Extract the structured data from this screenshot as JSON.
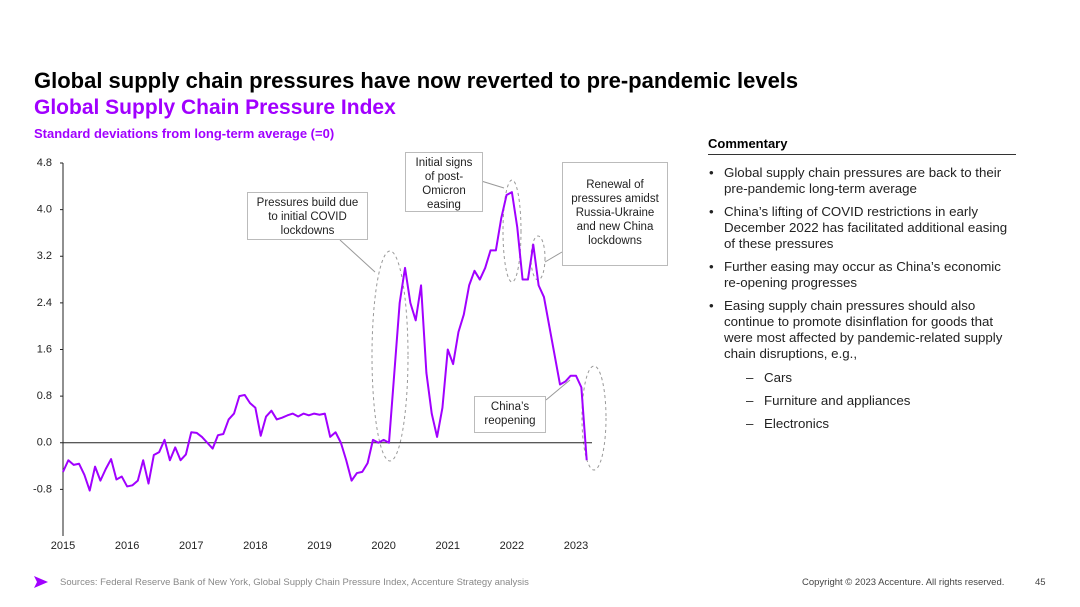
{
  "header": {
    "title": "Global supply chain pressures have now reverted to pre-pandemic levels"
  },
  "chart_data": {
    "type": "line",
    "title": "Global Supply Chain Pressure Index",
    "y_label": "Standard deviations from long-term average (=0)",
    "categories": [
      "2015",
      null,
      null,
      null,
      null,
      null,
      null,
      null,
      null,
      null,
      null,
      null,
      "2016",
      null,
      null,
      null,
      null,
      null,
      null,
      null,
      null,
      null,
      null,
      null,
      "2017",
      null,
      null,
      null,
      null,
      null,
      null,
      null,
      null,
      null,
      null,
      null,
      "2018",
      null,
      null,
      null,
      null,
      null,
      null,
      null,
      null,
      null,
      null,
      null,
      "2019",
      null,
      null,
      null,
      null,
      null,
      null,
      null,
      null,
      null,
      null,
      null,
      "2020",
      null,
      null,
      null,
      null,
      null,
      null,
      null,
      null,
      null,
      null,
      null,
      "2021",
      null,
      null,
      null,
      null,
      null,
      null,
      null,
      null,
      null,
      null,
      null,
      "2022",
      null,
      null,
      null,
      null,
      null,
      null,
      null,
      null,
      null,
      null,
      null,
      "2023",
      null,
      null
    ],
    "values": [
      -0.5,
      -0.3,
      -0.38,
      -0.36,
      -0.55,
      -0.82,
      -0.41,
      -0.65,
      -0.45,
      -0.28,
      -0.63,
      -0.58,
      -0.75,
      -0.73,
      -0.65,
      -0.3,
      -0.7,
      -0.21,
      -0.16,
      0.05,
      -0.3,
      -0.08,
      -0.3,
      -0.2,
      0.18,
      0.17,
      0.1,
      0.0,
      -0.1,
      0.13,
      0.15,
      0.4,
      0.5,
      0.8,
      0.82,
      0.68,
      0.6,
      0.12,
      0.45,
      0.55,
      0.4,
      0.43,
      0.47,
      0.5,
      0.45,
      0.5,
      0.47,
      0.5,
      0.48,
      0.5,
      0.1,
      0.18,
      0.0,
      -0.3,
      -0.65,
      -0.52,
      -0.5,
      -0.35,
      0.05,
      0.0,
      0.05,
      0.0,
      1.2,
      2.4,
      3.0,
      2.4,
      2.1,
      2.7,
      1.2,
      0.5,
      0.1,
      0.6,
      1.6,
      1.35,
      1.9,
      2.2,
      2.7,
      2.95,
      2.8,
      3.0,
      3.3,
      3.3,
      3.85,
      4.25,
      4.3,
      3.7,
      2.8,
      2.8,
      3.4,
      2.7,
      2.5,
      2.0,
      1.5,
      1.0,
      1.05,
      1.15,
      1.15,
      0.95,
      -0.3
    ],
    "color": "#a100ff",
    "ylim": [
      -1.6,
      4.8
    ],
    "yticks": [
      -0.8,
      {
        "value": 0,
        "label": "0.0"
      },
      0.8,
      1.6,
      2.4,
      3.2,
      {
        "value": 4,
        "label": "4.0"
      },
      4.8
    ],
    "grid": false,
    "annotations": [
      "Pressures build due to initial COVID lockdowns",
      "Initial signs of post-Omicron easing",
      "Renewal of pressures amidst Russia-Ukraine and new China lockdowns",
      "China’s reopening"
    ]
  },
  "commentary": {
    "heading": "Commentary",
    "bullets": [
      "Global supply chain pressures are back to their pre-pandemic long-term average",
      "China’s lifting of COVID restrictions in early December 2022 has facilitated additional easing of these pressures",
      "Further easing may occur as China’s economic re-opening progresses",
      "Easing supply chain pressures should also continue to promote disinflation for goods that were most affected by pandemic-related supply chain disruptions, e.g.,"
    ],
    "sub_bullets": [
      "Cars",
      "Furniture and appliances",
      "Electronics"
    ]
  },
  "footer": {
    "source": "Sources: Federal Reserve Bank of New York, Global Supply Chain Pressure Index, Accenture Strategy analysis",
    "copyright": "Copyright © 2023 Accenture. All rights reserved.",
    "page": "45"
  }
}
